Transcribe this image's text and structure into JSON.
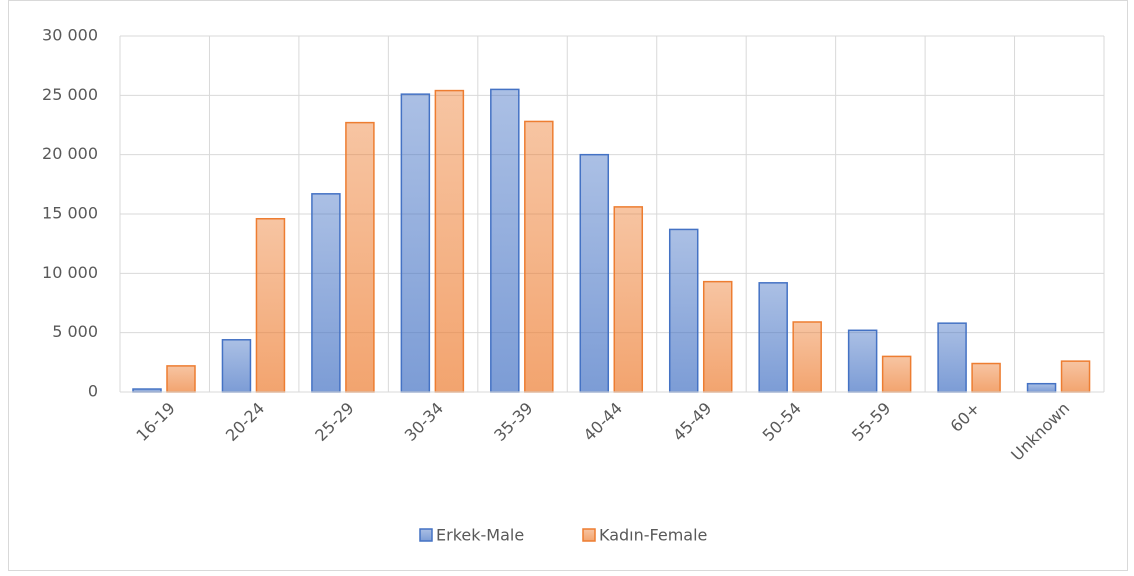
{
  "chart_data": {
    "type": "bar",
    "categories": [
      "16-19",
      "20-24",
      "25-29",
      "30-34",
      "35-39",
      "40-44",
      "45-49",
      "50-54",
      "55-59",
      "60+",
      "Unknown"
    ],
    "series": [
      {
        "name": "Erkek-Male",
        "color": "#4472c4",
        "values": [
          250,
          4400,
          16700,
          25100,
          25500,
          20000,
          13700,
          9200,
          5200,
          5800,
          700
        ]
      },
      {
        "name": "Kadın-Female",
        "color": "#ed7d31",
        "values": [
          2200,
          14600,
          22700,
          25400,
          22800,
          15600,
          9300,
          5900,
          3000,
          2400,
          2600
        ]
      }
    ],
    "ylim": [
      0,
      30000
    ],
    "yticks": [
      0,
      {
        "value": 5000,
        "label": "5 000"
      },
      {
        "value": 10000,
        "label": "10 000"
      },
      {
        "value": 15000,
        "label": "15 000"
      },
      {
        "value": 20000,
        "label": "20 000"
      },
      {
        "value": 25000,
        "label": "25 000"
      },
      {
        "value": 30000,
        "label": "30 000"
      }
    ],
    "grid": true,
    "legend": "bottom"
  }
}
